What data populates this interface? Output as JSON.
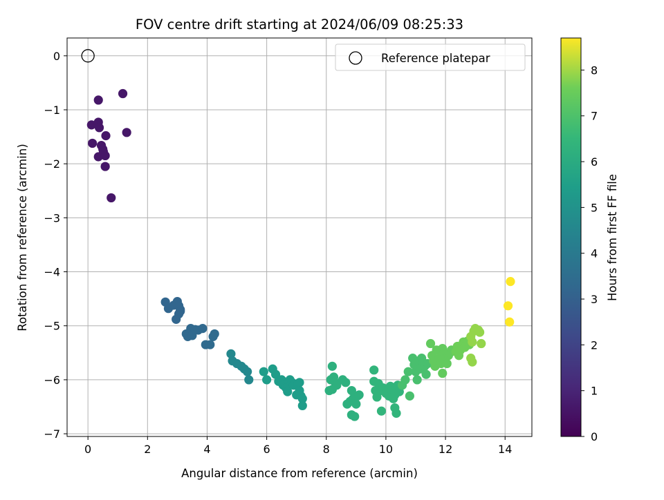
{
  "chart_data": {
    "type": "scatter",
    "title": "FOV centre drift starting at 2024/06/09 08:25:33",
    "xlabel": "Angular distance from reference (arcmin)",
    "ylabel": "Rotation from reference (arcmin)",
    "xlim": [
      -0.7,
      14.9
    ],
    "ylim": [
      -7.05,
      0.33
    ],
    "xticks": [
      0,
      2,
      4,
      6,
      8,
      10,
      12,
      14
    ],
    "yticks": [
      0,
      -1,
      -2,
      -3,
      -4,
      -5,
      -6,
      -7
    ],
    "xtick_labels": [
      "0",
      "2",
      "4",
      "6",
      "8",
      "10",
      "12",
      "14"
    ],
    "ytick_labels": [
      "0",
      "−1",
      "−2",
      "−3",
      "−4",
      "−5",
      "−6",
      "−7"
    ],
    "grid": true,
    "legend": {
      "position": "top-right",
      "entries": [
        "Reference platepar"
      ]
    },
    "reference_point": {
      "x": 0,
      "y": 0,
      "label": "Reference platepar"
    },
    "colorbar": {
      "label": "Hours from first FF file",
      "range": [
        0,
        8.7
      ],
      "ticks": [
        0,
        1,
        2,
        3,
        4,
        5,
        6,
        7,
        8
      ],
      "tick_labels": [
        "0",
        "1",
        "2",
        "3",
        "4",
        "5",
        "6",
        "7",
        "8"
      ],
      "colormap": "viridis"
    },
    "points": [
      [
        0.35,
        -0.82,
        0.6
      ],
      [
        1.17,
        -0.7,
        0.6
      ],
      [
        1.3,
        -1.42,
        0.6
      ],
      [
        0.12,
        -1.28,
        0.6
      ],
      [
        0.35,
        -1.23,
        0.6
      ],
      [
        0.38,
        -1.33,
        0.6
      ],
      [
        0.15,
        -1.62,
        0.6
      ],
      [
        0.45,
        -1.66,
        0.6
      ],
      [
        0.6,
        -1.48,
        0.6
      ],
      [
        0.5,
        -1.73,
        0.6
      ],
      [
        0.52,
        -1.78,
        0.6
      ],
      [
        0.35,
        -1.87,
        0.6
      ],
      [
        0.58,
        -1.85,
        0.6
      ],
      [
        0.58,
        -2.05,
        0.6
      ],
      [
        0.78,
        -2.63,
        0.6
      ],
      [
        2.6,
        -4.56,
        3.2
      ],
      [
        2.7,
        -4.68,
        3.2
      ],
      [
        2.88,
        -4.62,
        3.2
      ],
      [
        3.0,
        -4.55,
        3.2
      ],
      [
        3.05,
        -4.63,
        3.2
      ],
      [
        3.1,
        -4.7,
        3.2
      ],
      [
        3.05,
        -4.78,
        3.2
      ],
      [
        2.96,
        -4.88,
        3.2
      ],
      [
        3.1,
        -4.73,
        3.2
      ],
      [
        3.3,
        -5.15,
        3.3
      ],
      [
        3.35,
        -5.2,
        3.3
      ],
      [
        3.45,
        -5.05,
        3.3
      ],
      [
        3.5,
        -5.18,
        3.3
      ],
      [
        3.6,
        -5.07,
        3.3
      ],
      [
        3.7,
        -5.08,
        3.3
      ],
      [
        3.85,
        -5.05,
        3.3
      ],
      [
        3.95,
        -5.35,
        3.4
      ],
      [
        4.1,
        -5.35,
        3.4
      ],
      [
        4.2,
        -5.2,
        3.4
      ],
      [
        4.25,
        -5.15,
        3.4
      ],
      [
        4.8,
        -5.52,
        4.6
      ],
      [
        4.85,
        -5.65,
        4.6
      ],
      [
        5.0,
        -5.7,
        4.6
      ],
      [
        5.15,
        -5.75,
        4.6
      ],
      [
        5.25,
        -5.8,
        4.6
      ],
      [
        5.35,
        -5.85,
        4.6
      ],
      [
        5.4,
        -6.0,
        4.6
      ],
      [
        5.9,
        -5.85,
        5.4
      ],
      [
        6.0,
        -6.0,
        5.4
      ],
      [
        6.2,
        -5.8,
        5.4
      ],
      [
        6.3,
        -5.9,
        5.4
      ],
      [
        6.4,
        -6.03,
        5.4
      ],
      [
        6.5,
        -6.0,
        5.4
      ],
      [
        6.55,
        -6.1,
        5.4
      ],
      [
        6.65,
        -6.15,
        5.4
      ],
      [
        6.7,
        -6.22,
        5.4
      ],
      [
        6.78,
        -6.0,
        5.4
      ],
      [
        6.85,
        -6.05,
        5.4
      ],
      [
        6.9,
        -6.1,
        5.4
      ],
      [
        7.0,
        -6.28,
        5.4
      ],
      [
        7.05,
        -6.08,
        5.4
      ],
      [
        7.1,
        -6.05,
        5.4
      ],
      [
        7.1,
        -6.2,
        5.4
      ],
      [
        7.15,
        -6.3,
        5.4
      ],
      [
        7.2,
        -6.35,
        5.4
      ],
      [
        7.2,
        -6.48,
        5.4
      ],
      [
        8.2,
        -5.75,
        6.2
      ],
      [
        8.15,
        -6.0,
        6.2
      ],
      [
        8.25,
        -5.95,
        6.2
      ],
      [
        8.3,
        -6.05,
        6.2
      ],
      [
        8.1,
        -6.2,
        6.2
      ],
      [
        8.2,
        -6.18,
        6.2
      ],
      [
        8.35,
        -6.1,
        6.2
      ],
      [
        8.55,
        -6.0,
        6.2
      ],
      [
        8.65,
        -6.05,
        6.2
      ],
      [
        8.7,
        -6.45,
        6.2
      ],
      [
        8.8,
        -6.4,
        6.2
      ],
      [
        8.85,
        -6.2,
        6.2
      ],
      [
        8.9,
        -6.35,
        6.2
      ],
      [
        9.0,
        -6.45,
        6.2
      ],
      [
        9.05,
        -6.3,
        6.2
      ],
      [
        9.1,
        -6.28,
        6.2
      ],
      [
        8.85,
        -6.65,
        6.2
      ],
      [
        8.95,
        -6.68,
        6.2
      ],
      [
        9.6,
        -5.82,
        6.4
      ],
      [
        9.6,
        -6.03,
        6.4
      ],
      [
        9.75,
        -6.07,
        6.4
      ],
      [
        9.65,
        -6.2,
        6.4
      ],
      [
        9.7,
        -6.32,
        6.4
      ],
      [
        9.85,
        -6.2,
        6.4
      ],
      [
        9.9,
        -6.15,
        6.4
      ],
      [
        10.0,
        -6.25,
        6.4
      ],
      [
        10.05,
        -6.2,
        6.4
      ],
      [
        10.1,
        -6.3,
        6.4
      ],
      [
        10.15,
        -6.12,
        6.4
      ],
      [
        10.2,
        -6.2,
        6.4
      ],
      [
        10.25,
        -6.35,
        6.4
      ],
      [
        10.3,
        -6.28,
        6.4
      ],
      [
        10.35,
        -6.15,
        6.4
      ],
      [
        10.4,
        -6.1,
        6.4
      ],
      [
        10.45,
        -6.22,
        6.4
      ],
      [
        10.3,
        -6.52,
        6.4
      ],
      [
        10.35,
        -6.62,
        6.4
      ],
      [
        9.85,
        -6.58,
        6.4
      ],
      [
        10.55,
        -6.1,
        6.9
      ],
      [
        10.65,
        -6.0,
        6.9
      ],
      [
        10.75,
        -5.85,
        6.9
      ],
      [
        10.8,
        -6.3,
        6.9
      ],
      [
        10.9,
        -5.6,
        6.9
      ],
      [
        10.95,
        -5.72,
        6.9
      ],
      [
        11.0,
        -5.85,
        6.9
      ],
      [
        11.05,
        -6.0,
        6.9
      ],
      [
        11.1,
        -5.65,
        6.9
      ],
      [
        11.15,
        -5.8,
        6.9
      ],
      [
        11.2,
        -5.6,
        6.9
      ],
      [
        11.25,
        -5.68,
        6.9
      ],
      [
        11.3,
        -5.75,
        6.9
      ],
      [
        11.35,
        -5.9,
        6.9
      ],
      [
        11.4,
        -5.7,
        6.9
      ],
      [
        11.5,
        -5.33,
        7.4
      ],
      [
        11.55,
        -5.55,
        7.4
      ],
      [
        11.6,
        -5.65,
        7.4
      ],
      [
        11.65,
        -5.75,
        7.4
      ],
      [
        11.7,
        -5.45,
        7.4
      ],
      [
        11.8,
        -5.6,
        7.4
      ],
      [
        11.85,
        -5.7,
        7.4
      ],
      [
        11.9,
        -5.42,
        7.4
      ],
      [
        11.95,
        -5.5,
        7.4
      ],
      [
        11.9,
        -5.88,
        7.4
      ],
      [
        12.0,
        -5.6,
        7.4
      ],
      [
        12.05,
        -5.7,
        7.4
      ],
      [
        12.1,
        -5.55,
        7.4
      ],
      [
        12.15,
        -5.5,
        7.4
      ],
      [
        12.2,
        -5.45,
        7.4
      ],
      [
        12.35,
        -5.48,
        7.6
      ],
      [
        12.4,
        -5.38,
        7.6
      ],
      [
        12.45,
        -5.55,
        7.6
      ],
      [
        12.5,
        -5.45,
        7.6
      ],
      [
        12.6,
        -5.3,
        7.6
      ],
      [
        12.65,
        -5.4,
        7.6
      ],
      [
        12.7,
        -5.35,
        7.6
      ],
      [
        12.75,
        -5.28,
        7.6
      ],
      [
        12.8,
        -5.35,
        7.6
      ],
      [
        12.85,
        -5.2,
        7.9
      ],
      [
        12.9,
        -5.3,
        7.9
      ],
      [
        12.95,
        -5.1,
        7.9
      ],
      [
        12.85,
        -5.6,
        7.9
      ],
      [
        12.9,
        -5.67,
        7.9
      ],
      [
        13.0,
        -5.05,
        7.9
      ],
      [
        13.1,
        -5.08,
        7.9
      ],
      [
        13.15,
        -5.12,
        7.9
      ],
      [
        13.2,
        -5.33,
        7.9
      ],
      [
        14.18,
        -4.18,
        8.7
      ],
      [
        14.1,
        -4.63,
        8.7
      ],
      [
        14.15,
        -4.93,
        8.7
      ]
    ]
  }
}
